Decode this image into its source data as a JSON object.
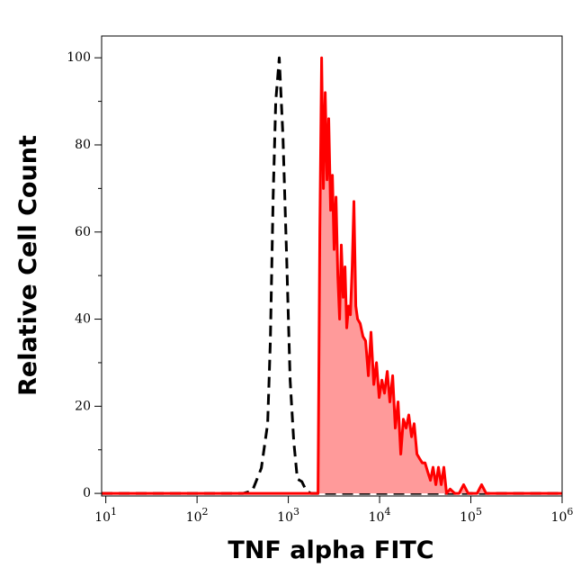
{
  "chart_data": {
    "type": "histogram-overlay",
    "xlabel": "TNF alpha FITC",
    "ylabel": "Relative Cell Count",
    "xscale": "log",
    "xlim": [
      9,
      1000000
    ],
    "ylim": [
      -0.6,
      105
    ],
    "xticks": [
      {
        "value": 10,
        "label": "10",
        "exponent": "1"
      },
      {
        "value": 100,
        "label": "10",
        "exponent": "2"
      },
      {
        "value": 1000,
        "label": "10",
        "exponent": "3"
      },
      {
        "value": 10000,
        "label": "10",
        "exponent": "4"
      },
      {
        "value": 100000,
        "label": "10",
        "exponent": "5"
      },
      {
        "value": 1000000,
        "label": "10",
        "exponent": "6"
      }
    ],
    "yticks": [
      0,
      20,
      40,
      60,
      80,
      100
    ],
    "yminorticks": [
      10,
      30,
      50,
      70,
      90
    ],
    "series": [
      {
        "color": "#000000",
        "style": "dashed",
        "x": [
          9,
          321,
          404,
          506,
          593,
          635,
          681,
          728,
          796,
          873,
          955,
          1047,
          1146,
          1256,
          1406,
          1575,
          1763,
          1000000
        ],
        "values": [
          0,
          0,
          0.6,
          5.8,
          16,
          35,
          68,
          90,
          100,
          82,
          55,
          26,
          12,
          3.3,
          2.7,
          0.6,
          0,
          0
        ]
      },
      {
        "color": "#ff0000",
        "fill": "#ff9a9a",
        "style": "solid",
        "x": [
          9,
          2113,
          2213,
          2317,
          2423,
          2535,
          2655,
          2773,
          2904,
          3041,
          3177,
          3327,
          3483,
          3648,
          3811,
          3990,
          4178,
          4365,
          4571,
          4786,
          5012,
          5236,
          5483,
          5741,
          6138,
          6577,
          7031,
          7534,
          8054,
          8630,
          9247,
          9886,
          10593,
          11324,
          12134,
          12972,
          13900,
          14859,
          15922,
          17061,
          18239,
          19543,
          20893,
          22387,
          23933,
          25645,
          27416,
          29376,
          31477,
          33651,
          36058,
          38548,
          41305,
          44157,
          47315,
          50582,
          54200,
          59293,
          66527,
          74473,
          83368,
          93325,
          117220,
          131220,
          146890,
          1000000
        ],
        "values": [
          0,
          0,
          60,
          100,
          70,
          92,
          72,
          86,
          65,
          73,
          56,
          68,
          50,
          40,
          57,
          45,
          52,
          38,
          43,
          41,
          52,
          67,
          43,
          40,
          39,
          36,
          35,
          27,
          37,
          25,
          30,
          22,
          26,
          23,
          28,
          21,
          27,
          15,
          21,
          9,
          17,
          15,
          18,
          13,
          16,
          9,
          8,
          7,
          7,
          5,
          3,
          6,
          2,
          6,
          2,
          6,
          0,
          1,
          0,
          0,
          2,
          0,
          0,
          2,
          0,
          0
        ]
      }
    ]
  }
}
